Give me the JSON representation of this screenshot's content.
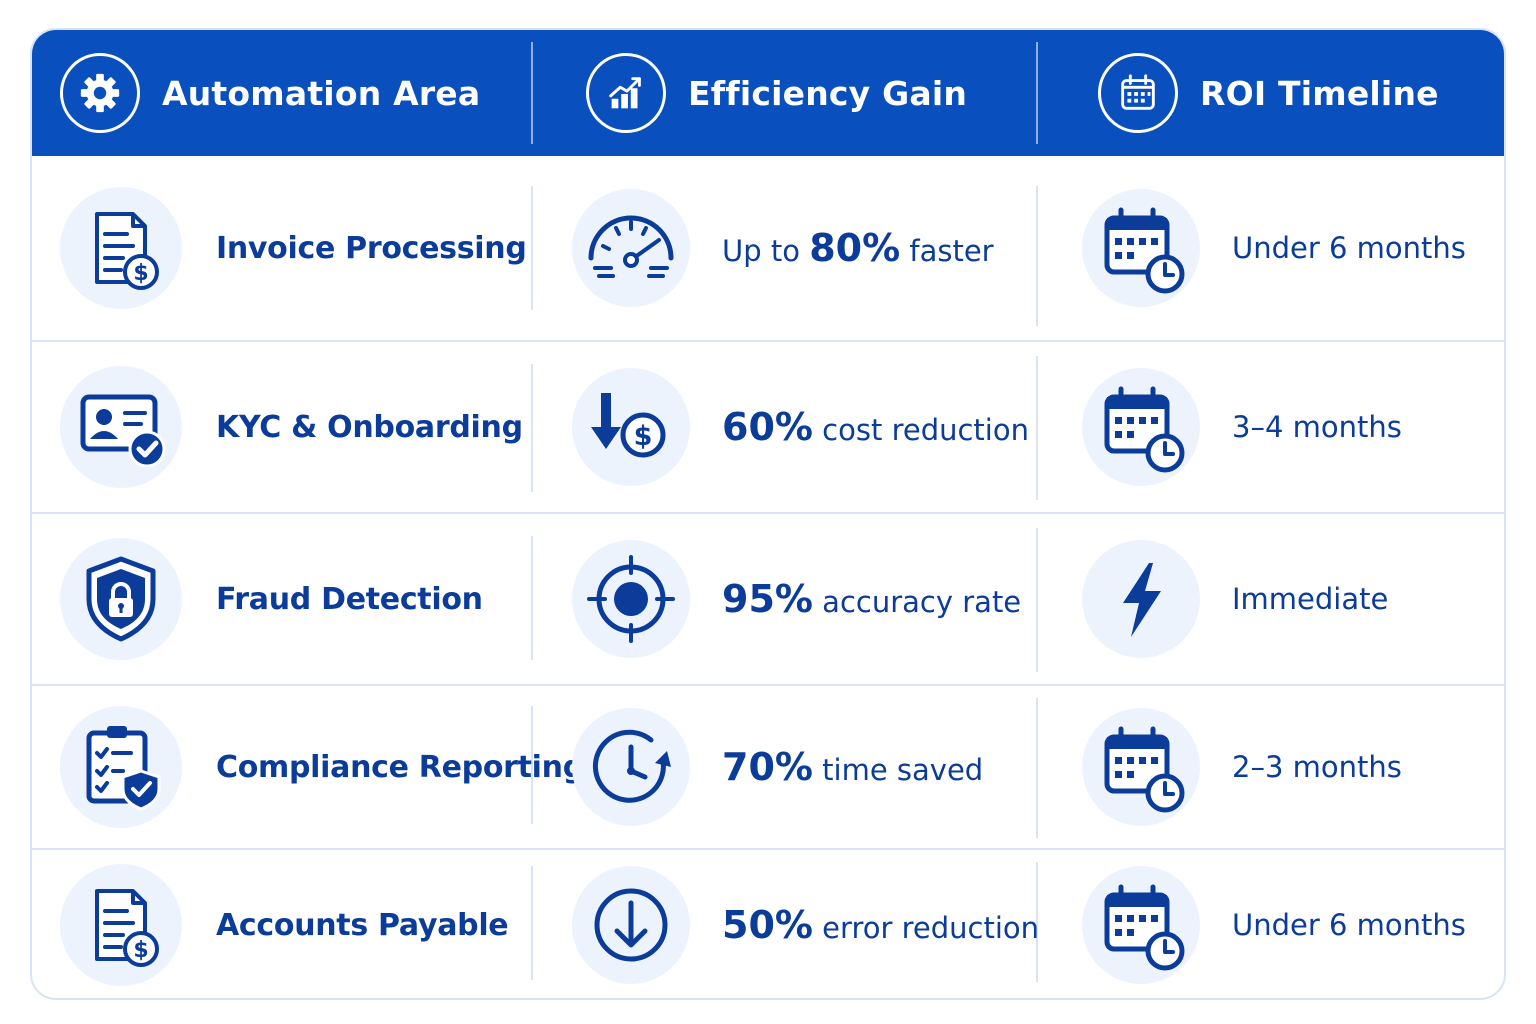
{
  "header": {
    "col1": "Automation Area",
    "col2": "Efficiency Gain",
    "col3": "ROI Timeline"
  },
  "rows": [
    {
      "area": "Invoice Processing",
      "area_icon": "invoice-dollar-icon",
      "gain_prefix": "Up to ",
      "gain_value": "80%",
      "gain_suffix": " faster",
      "gain_icon": "speedometer-icon",
      "roi": "Under 6 months",
      "roi_icon": "calendar-clock-icon"
    },
    {
      "area": "KYC & Onboarding",
      "area_icon": "id-card-check-icon",
      "gain_prefix": "",
      "gain_value": "60%",
      "gain_suffix": " cost reduction",
      "gain_icon": "cost-down-icon",
      "roi": "3–4 months",
      "roi_icon": "calendar-clock-icon"
    },
    {
      "area": "Fraud Detection",
      "area_icon": "shield-lock-icon",
      "gain_prefix": "",
      "gain_value": "95%",
      "gain_suffix": " accuracy rate",
      "gain_icon": "target-icon",
      "roi": "Immediate",
      "roi_icon": "lightning-icon"
    },
    {
      "area": "Compliance Reporting",
      "area_icon": "clipboard-shield-icon",
      "gain_prefix": "",
      "gain_value": "70%",
      "gain_suffix": " time saved",
      "gain_icon": "clock-refresh-icon",
      "roi": "2–3 months",
      "roi_icon": "calendar-clock-icon"
    },
    {
      "area": "Accounts Payable",
      "area_icon": "invoice-dollar-icon",
      "gain_prefix": "",
      "gain_value": "50%",
      "gain_suffix": " error reduction",
      "gain_icon": "arrow-down-circle-icon",
      "roi": "Under 6 months",
      "roi_icon": "calendar-clock-icon"
    }
  ],
  "colors": {
    "header_bg": "#0a4fbe",
    "icon_blue": "#0b3c9a",
    "icon_circle_bg": "#edf3fd",
    "grid_line": "#d9e5f7"
  }
}
